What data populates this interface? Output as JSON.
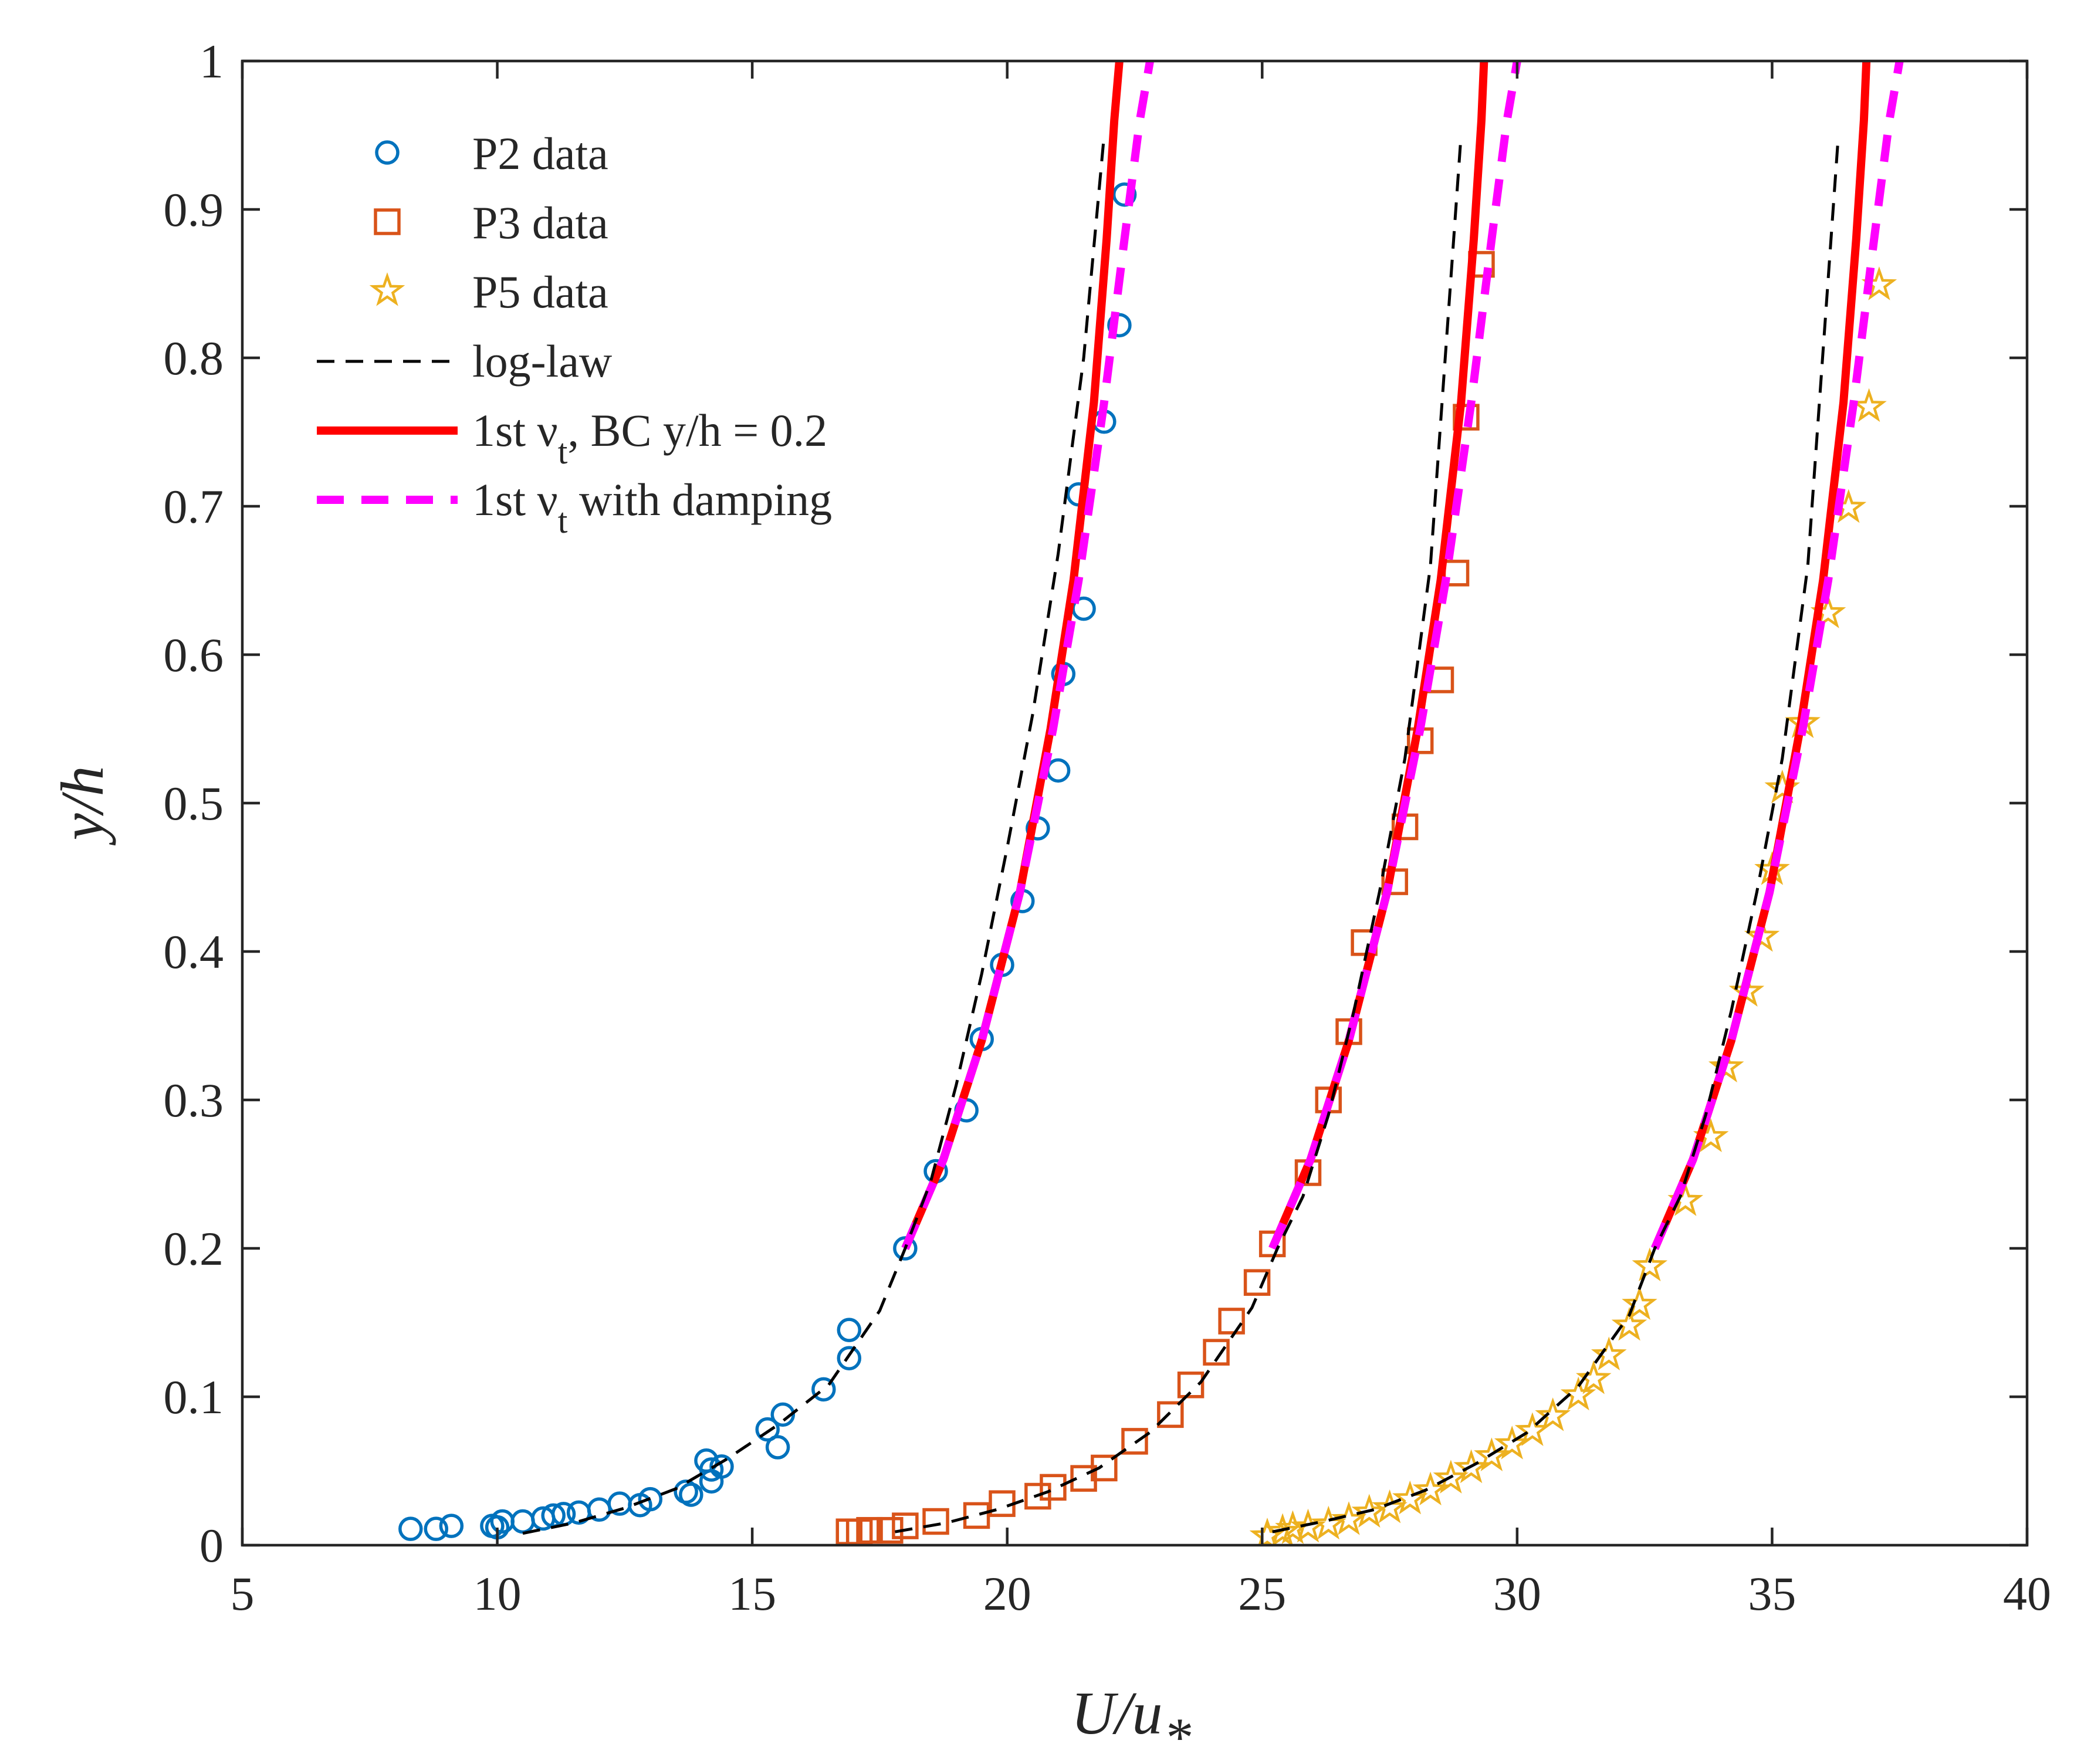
{
  "chart_data": {
    "type": "scatter",
    "xlabel": "U/u",
    "xlabel_sub": "*",
    "ylabel": "y/h",
    "xlim": [
      5,
      40
    ],
    "ylim": [
      0,
      1
    ],
    "xticks": [
      "5",
      "10",
      "15",
      "20",
      "25",
      "30",
      "35",
      "40"
    ],
    "yticks": [
      "0",
      "0.1",
      "0.2",
      "0.3",
      "0.4",
      "0.5",
      "0.6",
      "0.7",
      "0.8",
      "0.9",
      "1"
    ],
    "grid": false,
    "legend_position": "top-left",
    "legend": [
      {
        "label": "P2 data",
        "marker": "circle",
        "color": "#0072BD"
      },
      {
        "label": "P3 data",
        "marker": "square",
        "color": "#D95319"
      },
      {
        "label": "P5 data",
        "marker": "star",
        "color": "#EDB120"
      },
      {
        "label": "log-law",
        "line": "dashed",
        "color": "#000000"
      },
      {
        "label": "1st ν",
        "label_sub": "t",
        "label_tail": ", BC y/h = 0.2",
        "line": "solid",
        "color": "#FF0000"
      },
      {
        "label": "1st ν",
        "label_sub": "t",
        "label_tail": " with damping",
        "line": "dashed",
        "color": "#FF00FF"
      }
    ],
    "series": [
      {
        "name": "P2 data",
        "kind": "markers",
        "marker": "circle",
        "color": "#0072BD",
        "points": [
          [
            8.3,
            0.011
          ],
          [
            8.8,
            0.011
          ],
          [
            9.1,
            0.013
          ],
          [
            9.9,
            0.013
          ],
          [
            10.0,
            0.012
          ],
          [
            10.1,
            0.016
          ],
          [
            10.5,
            0.016
          ],
          [
            10.9,
            0.018
          ],
          [
            11.1,
            0.02
          ],
          [
            11.3,
            0.021
          ],
          [
            11.6,
            0.022
          ],
          [
            12.0,
            0.024
          ],
          [
            12.4,
            0.028
          ],
          [
            12.8,
            0.027
          ],
          [
            13.0,
            0.031
          ],
          [
            13.7,
            0.036
          ],
          [
            13.8,
            0.034
          ],
          [
            14.1,
            0.057
          ],
          [
            14.2,
            0.043
          ],
          [
            14.2,
            0.051
          ],
          [
            14.4,
            0.053
          ],
          [
            15.3,
            0.078
          ],
          [
            15.5,
            0.066
          ],
          [
            15.6,
            0.088
          ],
          [
            16.4,
            0.105
          ],
          [
            16.9,
            0.126
          ],
          [
            16.9,
            0.145
          ],
          [
            18.0,
            0.2
          ],
          [
            18.6,
            0.252
          ],
          [
            19.2,
            0.293
          ],
          [
            19.5,
            0.341
          ],
          [
            19.9,
            0.391
          ],
          [
            20.3,
            0.434
          ],
          [
            20.6,
            0.483
          ],
          [
            21.0,
            0.522
          ],
          [
            21.1,
            0.587
          ],
          [
            21.5,
            0.631
          ],
          [
            21.4,
            0.708
          ],
          [
            21.9,
            0.757
          ],
          [
            22.2,
            0.822
          ],
          [
            22.3,
            0.91
          ]
        ]
      },
      {
        "name": "P3 data",
        "kind": "markers",
        "marker": "square",
        "color": "#D95319",
        "points": [
          [
            16.9,
            0.009
          ],
          [
            17.1,
            0.009
          ],
          [
            17.3,
            0.01
          ],
          [
            17.7,
            0.01
          ],
          [
            18.0,
            0.013
          ],
          [
            18.6,
            0.016
          ],
          [
            19.4,
            0.02
          ],
          [
            19.9,
            0.028
          ],
          [
            20.6,
            0.033
          ],
          [
            20.9,
            0.039
          ],
          [
            21.5,
            0.045
          ],
          [
            21.9,
            0.052
          ],
          [
            22.5,
            0.07
          ],
          [
            23.2,
            0.088
          ],
          [
            23.6,
            0.108
          ],
          [
            24.1,
            0.13
          ],
          [
            24.4,
            0.151
          ],
          [
            24.9,
            0.177
          ],
          [
            25.2,
            0.203
          ],
          [
            25.9,
            0.251
          ],
          [
            26.3,
            0.3
          ],
          [
            26.7,
            0.346
          ],
          [
            27.0,
            0.406
          ],
          [
            27.6,
            0.447
          ],
          [
            27.8,
            0.484
          ],
          [
            28.1,
            0.542
          ],
          [
            28.5,
            0.583
          ],
          [
            28.8,
            0.655
          ],
          [
            29.0,
            0.76
          ],
          [
            29.3,
            0.863
          ]
        ]
      },
      {
        "name": "P5 data",
        "kind": "markers",
        "marker": "star",
        "color": "#EDB120",
        "points": [
          [
            25.1,
            0.006
          ],
          [
            25.4,
            0.009
          ],
          [
            25.6,
            0.011
          ],
          [
            25.9,
            0.012
          ],
          [
            26.3,
            0.014
          ],
          [
            26.7,
            0.017
          ],
          [
            27.1,
            0.022
          ],
          [
            27.5,
            0.025
          ],
          [
            27.9,
            0.031
          ],
          [
            28.3,
            0.037
          ],
          [
            28.7,
            0.045
          ],
          [
            29.1,
            0.052
          ],
          [
            29.5,
            0.06
          ],
          [
            29.9,
            0.068
          ],
          [
            30.3,
            0.077
          ],
          [
            30.7,
            0.087
          ],
          [
            31.2,
            0.101
          ],
          [
            31.5,
            0.112
          ],
          [
            31.8,
            0.128
          ],
          [
            32.2,
            0.148
          ],
          [
            32.4,
            0.162
          ],
          [
            32.6,
            0.188
          ],
          [
            33.3,
            0.232
          ],
          [
            33.8,
            0.275
          ],
          [
            34.1,
            0.322
          ],
          [
            34.5,
            0.373
          ],
          [
            34.8,
            0.41
          ],
          [
            35.0,
            0.455
          ],
          [
            35.2,
            0.51
          ],
          [
            35.6,
            0.554
          ],
          [
            36.1,
            0.628
          ],
          [
            36.5,
            0.699
          ],
          [
            36.9,
            0.767
          ],
          [
            37.1,
            0.849
          ]
        ]
      },
      {
        "name": "log-law",
        "kind": "line",
        "style": "dashed",
        "color": "#000000",
        "curves": [
          [
            [
              10.5,
              0.008
            ],
            [
              11.5,
              0.015
            ],
            [
              12.5,
              0.025
            ],
            [
              13.5,
              0.038
            ],
            [
              14.5,
              0.058
            ],
            [
              15.5,
              0.081
            ],
            [
              16.5,
              0.108
            ],
            [
              17.5,
              0.158
            ],
            [
              18.0,
              0.2
            ],
            [
              18.5,
              0.245
            ],
            [
              19.0,
              0.31
            ],
            [
              19.5,
              0.385
            ],
            [
              20.0,
              0.47
            ],
            [
              20.5,
              0.56
            ],
            [
              21.0,
              0.668
            ],
            [
              21.5,
              0.8
            ],
            [
              21.9,
              0.95
            ]
          ],
          [
            [
              17.8,
              0.009
            ],
            [
              18.8,
              0.015
            ],
            [
              19.8,
              0.024
            ],
            [
              20.8,
              0.036
            ],
            [
              21.8,
              0.052
            ],
            [
              22.8,
              0.076
            ],
            [
              23.8,
              0.11
            ],
            [
              24.8,
              0.16
            ],
            [
              25.3,
              0.2
            ],
            [
              25.8,
              0.235
            ],
            [
              26.3,
              0.29
            ],
            [
              26.8,
              0.36
            ],
            [
              27.3,
              0.44
            ],
            [
              27.8,
              0.53
            ],
            [
              28.3,
              0.66
            ],
            [
              28.9,
              0.95
            ]
          ],
          [
            [
              25.2,
              0.009
            ],
            [
              26.2,
              0.016
            ],
            [
              27.2,
              0.024
            ],
            [
              28.2,
              0.037
            ],
            [
              29.2,
              0.055
            ],
            [
              30.2,
              0.076
            ],
            [
              31.2,
              0.107
            ],
            [
              32.2,
              0.155
            ],
            [
              32.7,
              0.2
            ],
            [
              33.2,
              0.235
            ],
            [
              33.7,
              0.29
            ],
            [
              34.2,
              0.36
            ],
            [
              34.7,
              0.44
            ],
            [
              35.2,
              0.53
            ],
            [
              35.7,
              0.66
            ],
            [
              36.3,
              0.95
            ]
          ]
        ]
      },
      {
        "name": "1st νt, BC y/h = 0.2",
        "kind": "line",
        "style": "solid",
        "color": "#FF0000",
        "curves": [
          [
            [
              18.0,
              0.2
            ],
            [
              18.75,
              0.26
            ],
            [
              19.5,
              0.34
            ],
            [
              20.25,
              0.44
            ],
            [
              20.85,
              0.55
            ],
            [
              21.3,
              0.65
            ],
            [
              21.7,
              0.77
            ],
            [
              21.95,
              0.88
            ],
            [
              22.1,
              0.96
            ],
            [
              22.2,
              1.0
            ]
          ],
          [
            [
              25.2,
              0.2
            ],
            [
              25.95,
              0.26
            ],
            [
              26.7,
              0.34
            ],
            [
              27.45,
              0.44
            ],
            [
              28.05,
              0.55
            ],
            [
              28.5,
              0.65
            ],
            [
              28.9,
              0.77
            ],
            [
              29.15,
              0.88
            ],
            [
              29.3,
              0.96
            ],
            [
              29.35,
              1.0
            ]
          ],
          [
            [
              32.7,
              0.2
            ],
            [
              33.45,
              0.26
            ],
            [
              34.2,
              0.34
            ],
            [
              34.95,
              0.44
            ],
            [
              35.55,
              0.55
            ],
            [
              36.0,
              0.65
            ],
            [
              36.4,
              0.77
            ],
            [
              36.65,
              0.88
            ],
            [
              36.8,
              0.96
            ],
            [
              36.85,
              1.0
            ]
          ]
        ]
      },
      {
        "name": "1st νt with damping",
        "kind": "line",
        "style": "dashed",
        "color": "#FF00FF",
        "curves": [
          [
            [
              18.0,
              0.2
            ],
            [
              18.75,
              0.26
            ],
            [
              19.5,
              0.34
            ],
            [
              20.25,
              0.44
            ],
            [
              20.9,
              0.55
            ],
            [
              21.4,
              0.65
            ],
            [
              21.9,
              0.77
            ],
            [
              22.3,
              0.88
            ],
            [
              22.6,
              0.96
            ],
            [
              22.8,
              1.0
            ]
          ],
          [
            [
              25.2,
              0.2
            ],
            [
              25.95,
              0.26
            ],
            [
              26.7,
              0.34
            ],
            [
              27.45,
              0.44
            ],
            [
              28.1,
              0.55
            ],
            [
              28.6,
              0.65
            ],
            [
              29.1,
              0.77
            ],
            [
              29.5,
              0.88
            ],
            [
              29.8,
              0.96
            ],
            [
              30.0,
              1.0
            ]
          ],
          [
            [
              32.7,
              0.2
            ],
            [
              33.45,
              0.26
            ],
            [
              34.2,
              0.34
            ],
            [
              34.95,
              0.44
            ],
            [
              35.6,
              0.55
            ],
            [
              36.1,
              0.65
            ],
            [
              36.6,
              0.77
            ],
            [
              37.0,
              0.88
            ],
            [
              37.3,
              0.96
            ],
            [
              37.5,
              1.0
            ]
          ]
        ]
      }
    ]
  }
}
